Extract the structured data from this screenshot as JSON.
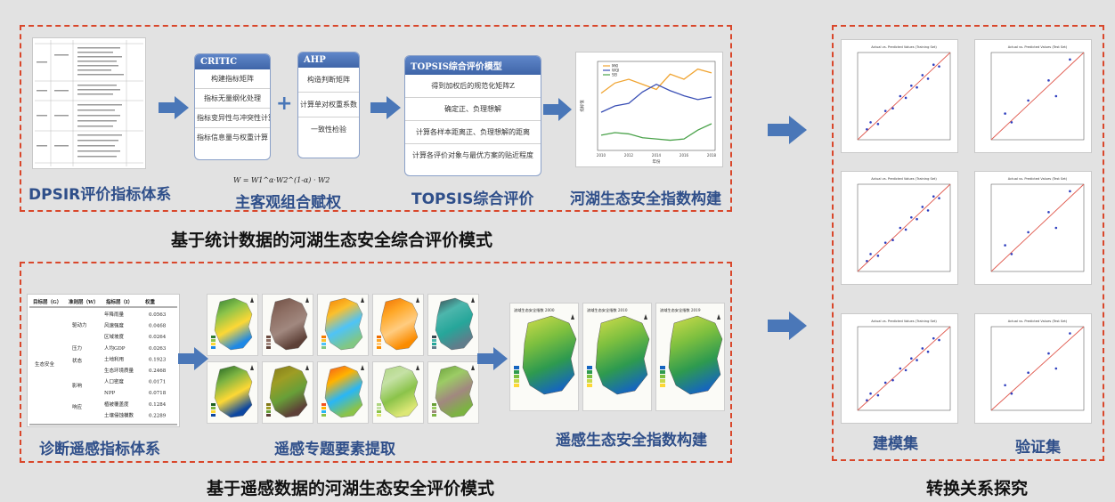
{
  "top_section": {
    "title": "基于统计数据的河湖生态安全综合评价模式",
    "captions": [
      "DPSIR评价指标体系",
      "主客观组合赋权",
      "TOPSIS综合评价",
      "河湖生态安全指数构建"
    ],
    "critic": {
      "header": "CRITIC",
      "steps": [
        "构建指标矩阵",
        "指标无量纲化处理",
        "指标变异性与冲突性计算",
        "指标信息量与权重计算"
      ]
    },
    "plus": "+",
    "ahp": {
      "header": "AHP",
      "steps": [
        "构造判断矩阵",
        "计算单对权重系数",
        "一致性检验"
      ]
    },
    "formula": "W = W1^α·W2^(1-α) · W2",
    "topsis": {
      "header": "TOPSIS综合评价模型",
      "steps": [
        "得到加权后的规范化矩阵Z",
        "确定正、负理想解",
        "计算各样本距离正、负理想解的距离",
        "计算各评价对象与最优方案的贴近程度"
      ]
    },
    "line_chart": {
      "type": "line",
      "legend": [
        "MKI",
        "WQI",
        "SEI"
      ],
      "x": [
        "2010",
        "2011",
        "2012",
        "2013",
        "2014",
        "2015",
        "2016",
        "2017",
        "2018"
      ],
      "series": [
        {
          "name": "MKI",
          "color": "#f0a431",
          "values": [
            0.55,
            0.63,
            0.66,
            0.62,
            0.58,
            0.7,
            0.66,
            0.74,
            0.71
          ]
        },
        {
          "name": "WQI",
          "color": "#3a4fb5",
          "values": [
            0.4,
            0.45,
            0.47,
            0.56,
            0.62,
            0.57,
            0.53,
            0.5,
            0.52
          ]
        },
        {
          "name": "SEI",
          "color": "#4aa24a",
          "values": [
            0.22,
            0.24,
            0.23,
            0.2,
            0.19,
            0.18,
            0.19,
            0.26,
            0.31
          ]
        }
      ],
      "ylabel": "指标值",
      "xlabel": "年份"
    }
  },
  "bottom_section": {
    "title": "基于遥感数据的河湖生态安全评价模式",
    "captions": [
      "诊断遥感指标体系",
      "遥感专题要素提取",
      "遥感生态安全指数构建"
    ],
    "table": {
      "headers": [
        "目标层（G）",
        "准则层（W）",
        "指标层（I）",
        "权重"
      ],
      "goal": "生态安全",
      "criteria": [
        "驱动力",
        "压力",
        "状态",
        "影响",
        "响应"
      ],
      "rows": [
        {
          "indicator": "年降雨量",
          "weight": "0.0563"
        },
        {
          "indicator": "风速强度",
          "weight": "0.0468"
        },
        {
          "indicator": "区域坡度",
          "weight": "0.0264"
        },
        {
          "indicator": "人均GDP",
          "weight": "0.0263"
        },
        {
          "indicator": "土地利用",
          "weight": "0.1923"
        },
        {
          "indicator": "生态环境质量",
          "weight": "0.2468"
        },
        {
          "indicator": "人口密度",
          "weight": "0.0171"
        },
        {
          "indicator": "NPP",
          "weight": "0.0718"
        },
        {
          "indicator": "植被覆盖度",
          "weight": "0.1284"
        },
        {
          "indicator": "土壤侵蚀模数",
          "weight": "0.2289"
        }
      ]
    },
    "index_maps": [
      "流域生态安全指数 2000",
      "流域生态安全指数 2010",
      "流域生态安全指数 2019"
    ]
  },
  "right_section": {
    "title": "转换关系探究",
    "captions": [
      "建模集",
      "验证集"
    ],
    "scatter_titles": [
      "Actual vs. Predicted Values (Training Set)",
      "Actual vs. Predicted Values (Test Set)",
      "Actual vs. Predicted Values (Training Set)",
      "Actual vs. Predicted Values (Test Set)",
      "Actual vs. Predicted Values (Training Set)",
      "Actual vs. Predicted Values (Test Set)"
    ]
  },
  "colors": {
    "dash": "#d9472b",
    "caption": "#2f4f8a",
    "arrow": "#4a77b8",
    "regression_line": "#e05a4f",
    "point": "#2f3fbf"
  }
}
